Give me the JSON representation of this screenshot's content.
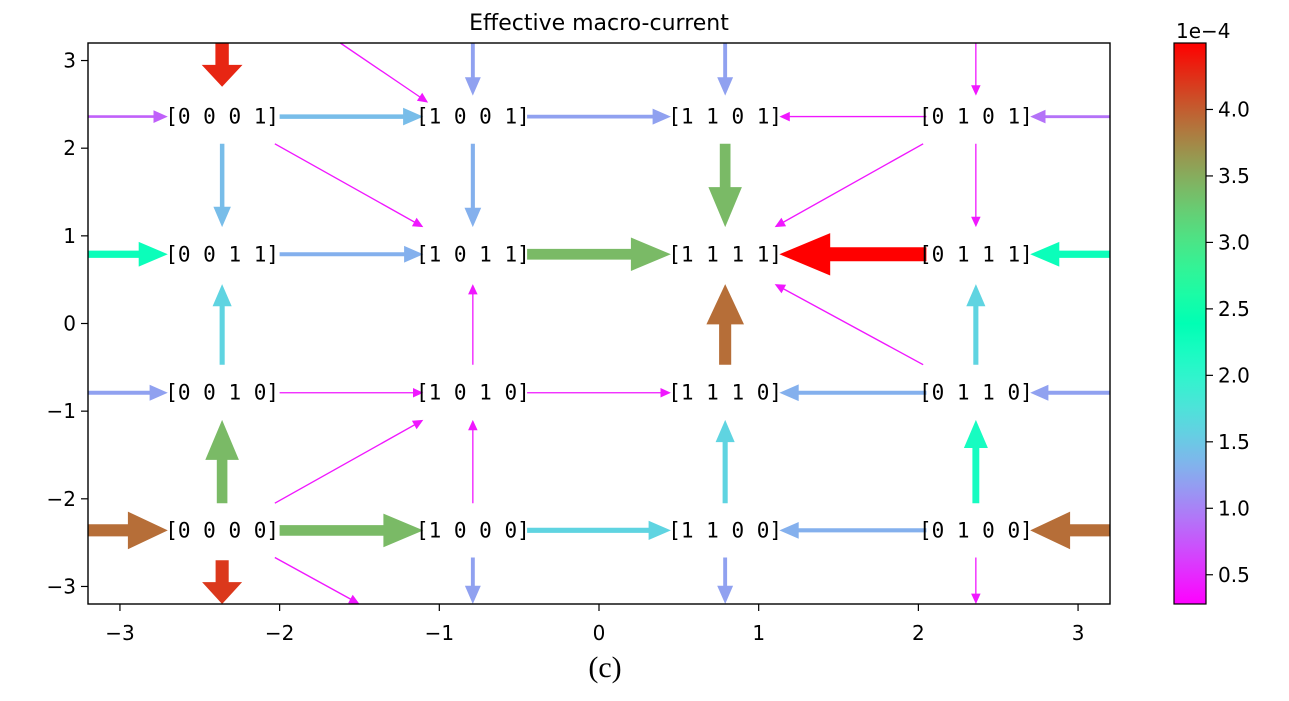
{
  "figure": {
    "caption": "(c)"
  },
  "chart_data": {
    "type": "quiver",
    "title": "Effective macro-current",
    "xlim": [
      -3.2,
      3.2
    ],
    "ylim": [
      -3.2,
      3.2
    ],
    "x_ticks": [
      -3,
      -2,
      -1,
      0,
      1,
      2,
      3
    ],
    "y_ticks": [
      -3,
      -2,
      -1,
      0,
      1,
      2,
      3
    ],
    "x_tick_labels": [
      "−3",
      "−2",
      "−1",
      "0",
      "1",
      "2",
      "3"
    ],
    "y_tick_labels": [
      "−3",
      "−2",
      "−1",
      "0",
      "1",
      "2",
      "3"
    ],
    "grid": false,
    "nodes": [
      {
        "label": "[0 0 0 1]",
        "x": -2.36,
        "y": 2.36
      },
      {
        "label": "[1 0 0 1]",
        "x": -0.79,
        "y": 2.36
      },
      {
        "label": "[1 1 0 1]",
        "x": 0.79,
        "y": 2.36
      },
      {
        "label": "[0 1 0 1]",
        "x": 2.36,
        "y": 2.36
      },
      {
        "label": "[0 0 1 1]",
        "x": -2.36,
        "y": 0.79
      },
      {
        "label": "[1 0 1 1]",
        "x": -0.79,
        "y": 0.79
      },
      {
        "label": "[1 1 1 1]",
        "x": 0.79,
        "y": 0.79
      },
      {
        "label": "[0 1 1 1]",
        "x": 2.36,
        "y": 0.79
      },
      {
        "label": "[0 0 1 0]",
        "x": -2.36,
        "y": -0.79
      },
      {
        "label": "[1 0 1 0]",
        "x": -0.79,
        "y": -0.79
      },
      {
        "label": "[1 1 1 0]",
        "x": 0.79,
        "y": -0.79
      },
      {
        "label": "[0 1 1 0]",
        "x": 2.36,
        "y": -0.79
      },
      {
        "label": "[0 0 0 0]",
        "x": -2.36,
        "y": -2.36
      },
      {
        "label": "[1 0 0 0]",
        "x": -0.79,
        "y": -2.36
      },
      {
        "label": "[1 1 0 0]",
        "x": 0.79,
        "y": -2.36
      },
      {
        "label": "[0 1 0 0]",
        "x": 2.36,
        "y": -2.36
      }
    ],
    "arrows": [
      {
        "x0": -2.36,
        "y0": 3.2,
        "x1": -2.36,
        "y1": 2.7,
        "value": 4.3
      },
      {
        "x0": -0.79,
        "y0": 3.2,
        "x1": -0.79,
        "y1": 2.6,
        "value": 1.2
      },
      {
        "x0": 0.79,
        "y0": 3.2,
        "x1": 0.79,
        "y1": 2.6,
        "value": 1.2
      },
      {
        "x0": 2.36,
        "y0": 3.2,
        "x1": 2.36,
        "y1": 2.6,
        "value": 0.4
      },
      {
        "x0": -1.62,
        "y0": 3.2,
        "x1": -1.07,
        "y1": 2.52,
        "value": 0.4
      },
      {
        "x0": -3.2,
        "y0": 2.36,
        "x1": -2.7,
        "y1": 2.36,
        "value": 0.8
      },
      {
        "x0": -2.0,
        "y0": 2.36,
        "x1": -1.1,
        "y1": 2.36,
        "value": 1.4
      },
      {
        "x0": -0.45,
        "y0": 2.36,
        "x1": 0.45,
        "y1": 2.36,
        "value": 1.2
      },
      {
        "x0": 2.05,
        "y0": 2.36,
        "x1": 1.13,
        "y1": 2.36,
        "value": 0.4
      },
      {
        "x0": 3.2,
        "y0": 2.36,
        "x1": 2.7,
        "y1": 2.36,
        "value": 0.9
      },
      {
        "x0": -2.36,
        "y0": 2.05,
        "x1": -2.36,
        "y1": 1.1,
        "value": 1.4
      },
      {
        "x0": -0.79,
        "y0": 2.05,
        "x1": -0.79,
        "y1": 1.1,
        "value": 1.3
      },
      {
        "x0": 0.79,
        "y0": 2.05,
        "x1": 0.79,
        "y1": 1.1,
        "value": 3.4
      },
      {
        "x0": 2.36,
        "y0": 2.05,
        "x1": 2.36,
        "y1": 1.1,
        "value": 0.4
      },
      {
        "x0": -2.03,
        "y0": 2.05,
        "x1": -1.1,
        "y1": 1.1,
        "value": 0.4
      },
      {
        "x0": 2.03,
        "y0": 2.05,
        "x1": 1.1,
        "y1": 1.1,
        "value": 0.4
      },
      {
        "x0": -3.2,
        "y0": 0.79,
        "x1": -2.7,
        "y1": 0.79,
        "value": 2.3
      },
      {
        "x0": -2.0,
        "y0": 0.79,
        "x1": -1.1,
        "y1": 0.79,
        "value": 1.3
      },
      {
        "x0": -0.45,
        "y0": 0.79,
        "x1": 0.45,
        "y1": 0.79,
        "value": 3.4
      },
      {
        "x0": 2.05,
        "y0": 0.79,
        "x1": 1.13,
        "y1": 0.79,
        "value": 4.5
      },
      {
        "x0": 3.2,
        "y0": 0.79,
        "x1": 2.7,
        "y1": 0.79,
        "value": 2.3
      },
      {
        "x0": -2.36,
        "y0": -0.47,
        "x1": -2.36,
        "y1": 0.45,
        "value": 1.6
      },
      {
        "x0": -0.79,
        "y0": -0.47,
        "x1": -0.79,
        "y1": 0.45,
        "value": 0.4
      },
      {
        "x0": 0.79,
        "y0": -0.47,
        "x1": 0.79,
        "y1": 0.45,
        "value": 3.9
      },
      {
        "x0": 2.36,
        "y0": -0.47,
        "x1": 2.36,
        "y1": 0.45,
        "value": 1.6
      },
      {
        "x0": 2.03,
        "y0": -0.47,
        "x1": 1.1,
        "y1": 0.45,
        "value": 0.4
      },
      {
        "x0": -3.2,
        "y0": -0.79,
        "x1": -2.7,
        "y1": -0.79,
        "value": 1.2
      },
      {
        "x0": -2.0,
        "y0": -0.79,
        "x1": -1.1,
        "y1": -0.79,
        "value": 0.4
      },
      {
        "x0": -0.45,
        "y0": -0.79,
        "x1": 0.45,
        "y1": -0.79,
        "value": 0.4
      },
      {
        "x0": 2.05,
        "y0": -0.79,
        "x1": 1.13,
        "y1": -0.79,
        "value": 1.3
      },
      {
        "x0": 3.2,
        "y0": -0.79,
        "x1": 2.7,
        "y1": -0.79,
        "value": 1.2
      },
      {
        "x0": -2.36,
        "y0": -2.05,
        "x1": -2.36,
        "y1": -1.1,
        "value": 3.4
      },
      {
        "x0": -0.79,
        "y0": -2.05,
        "x1": -0.79,
        "y1": -1.1,
        "value": 0.4
      },
      {
        "x0": 0.79,
        "y0": -2.05,
        "x1": 0.79,
        "y1": -1.1,
        "value": 1.6
      },
      {
        "x0": 2.36,
        "y0": -2.05,
        "x1": 2.36,
        "y1": -1.1,
        "value": 2.2
      },
      {
        "x0": -2.03,
        "y0": -2.05,
        "x1": -1.1,
        "y1": -1.1,
        "value": 0.4
      },
      {
        "x0": -3.2,
        "y0": -2.36,
        "x1": -2.7,
        "y1": -2.36,
        "value": 3.9
      },
      {
        "x0": -2.0,
        "y0": -2.36,
        "x1": -1.1,
        "y1": -2.36,
        "value": 3.4
      },
      {
        "x0": -0.45,
        "y0": -2.36,
        "x1": 0.45,
        "y1": -2.36,
        "value": 1.6
      },
      {
        "x0": 2.05,
        "y0": -2.36,
        "x1": 1.13,
        "y1": -2.36,
        "value": 1.3
      },
      {
        "x0": 3.2,
        "y0": -2.36,
        "x1": 2.7,
        "y1": -2.36,
        "value": 3.9
      },
      {
        "x0": -2.36,
        "y0": -2.7,
        "x1": -2.36,
        "y1": -3.2,
        "value": 4.2
      },
      {
        "x0": -2.03,
        "y0": -2.67,
        "x1": -1.5,
        "y1": -3.2,
        "value": 0.4
      },
      {
        "x0": -0.79,
        "y0": -2.67,
        "x1": -0.79,
        "y1": -3.2,
        "value": 1.2
      },
      {
        "x0": 0.79,
        "y0": -2.67,
        "x1": 0.79,
        "y1": -3.2,
        "value": 1.2
      },
      {
        "x0": 2.36,
        "y0": -2.67,
        "x1": 2.36,
        "y1": -3.2,
        "value": 0.4
      }
    ],
    "colorbar": {
      "colormap": "rainbow",
      "range": [
        0.28,
        4.5
      ],
      "ticks": [
        0.5,
        1.0,
        1.5,
        2.0,
        2.5,
        3.0,
        3.5,
        4.0
      ],
      "tick_labels": [
        "0.5",
        "1.0",
        "1.5",
        "2.0",
        "2.5",
        "3.0",
        "3.5",
        "4.0"
      ],
      "offset_label": "1e−4"
    }
  }
}
